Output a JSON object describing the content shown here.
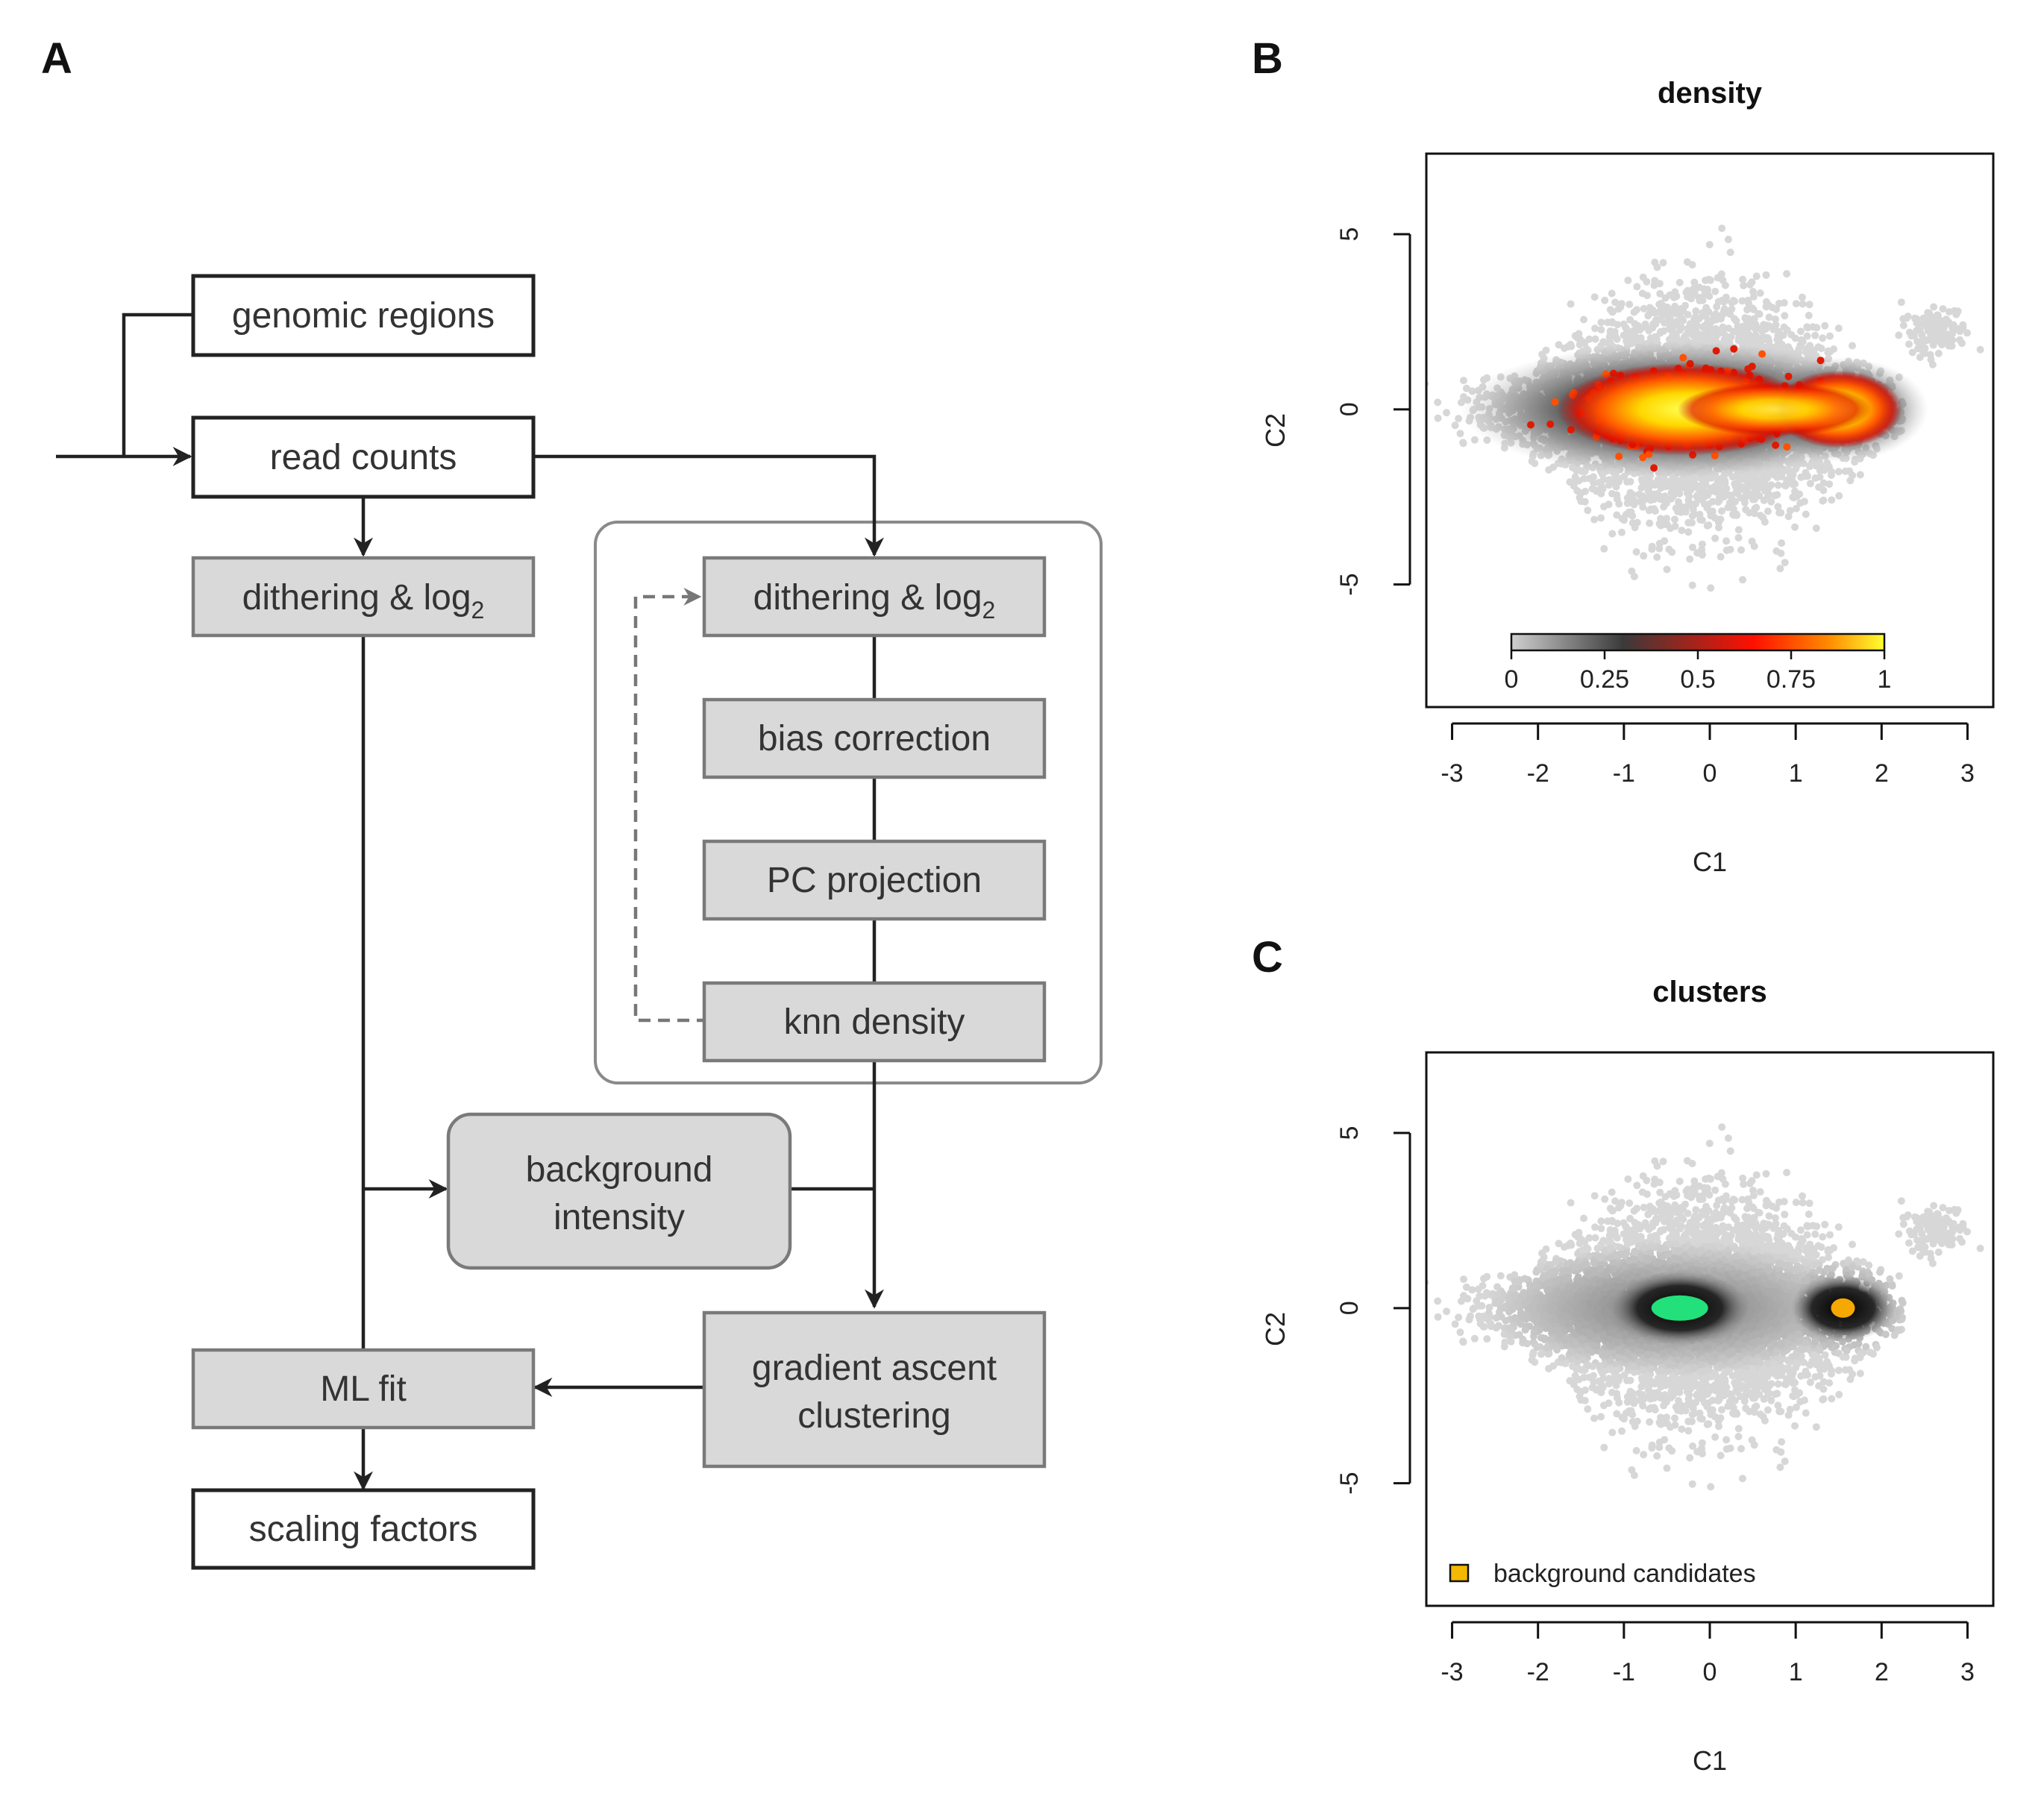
{
  "panels": {
    "a": "A",
    "b": "B",
    "c": "C"
  },
  "flowchart": {
    "genomic_regions": "genomic regions",
    "read_counts": "read counts",
    "dithering_left": "dithering & log",
    "dithering_right": "dithering & log",
    "subscript": "2",
    "bias_correction": "bias correction",
    "pc_projection": "PC projection",
    "knn_density": "knn density",
    "background_line1": "background",
    "background_line2": "intensity",
    "gradient_line1": "gradient ascent",
    "gradient_line2": "clustering",
    "ml_fit": "ML fit",
    "scaling_factors": "scaling factors"
  },
  "chart_data": [
    {
      "type": "scatter",
      "title": "density",
      "xlabel": "C1",
      "ylabel": "C2",
      "xlim": [
        -3.3,
        3.3
      ],
      "ylim": [
        -8.5,
        7.3
      ],
      "x_ticks": [
        -3,
        -2,
        -1,
        0,
        1,
        2,
        3
      ],
      "y_ticks": [
        -5,
        0,
        5
      ],
      "colorbar": {
        "ticks": [
          "0",
          "0.25",
          "0.5",
          "0.75",
          "1"
        ],
        "colors": [
          "#c8c8c8",
          "#3a3a3a",
          "#ff0000",
          "#ffff00"
        ]
      },
      "hotspots": [
        {
          "x": -0.3,
          "y": 0.0
        },
        {
          "x": 1.5,
          "y": 0.0
        }
      ]
    },
    {
      "type": "scatter",
      "title": "clusters",
      "xlabel": "C1",
      "ylabel": "C2",
      "xlim": [
        -3.3,
        3.3
      ],
      "ylim": [
        -8.5,
        7.3
      ],
      "x_ticks": [
        -3,
        -2,
        -1,
        0,
        1,
        2,
        3
      ],
      "y_ticks": [
        -5,
        0,
        5
      ],
      "legend": "background candidates",
      "legend_position": "bottom-left",
      "clusters": [
        {
          "x": -0.35,
          "y": 0.0,
          "color": "#22e07a"
        },
        {
          "x": 1.55,
          "y": 0.0,
          "color": "#f5a800"
        }
      ]
    }
  ]
}
